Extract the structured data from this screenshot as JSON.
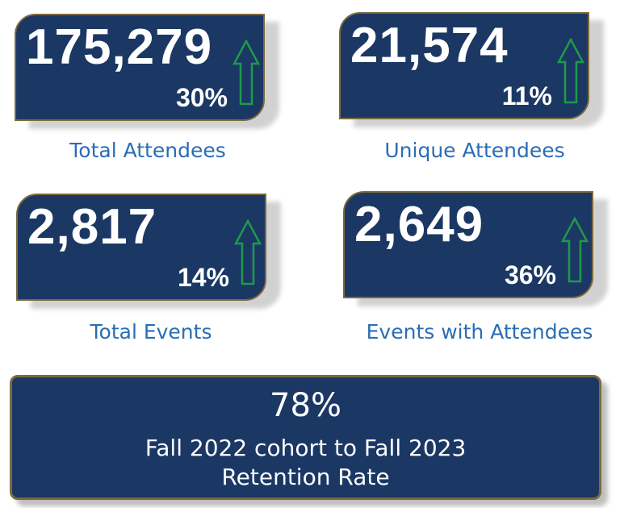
{
  "metrics": [
    {
      "value": "175,279",
      "change": "30%",
      "label": "Total Attendees",
      "trend": "up-arrow-icon"
    },
    {
      "value": "21,574",
      "change": "11%",
      "label": "Unique Attendees",
      "trend": "up-arrow-icon"
    },
    {
      "value": "2,817",
      "change": "14%",
      "label": "Total Events",
      "trend": "up-arrow-icon"
    },
    {
      "value": "2,649",
      "change": "36%",
      "label": "Events with Attendees",
      "trend": "up-arrow-icon"
    }
  ],
  "retention": {
    "value": "78%",
    "line1": "Fall 2022 cohort to Fall 2023",
    "line2": "Retention Rate"
  },
  "colors": {
    "card": "#1b3864",
    "border": "#7d6a3c",
    "label": "#2a6db5",
    "arrow": "#1e9a4a"
  }
}
